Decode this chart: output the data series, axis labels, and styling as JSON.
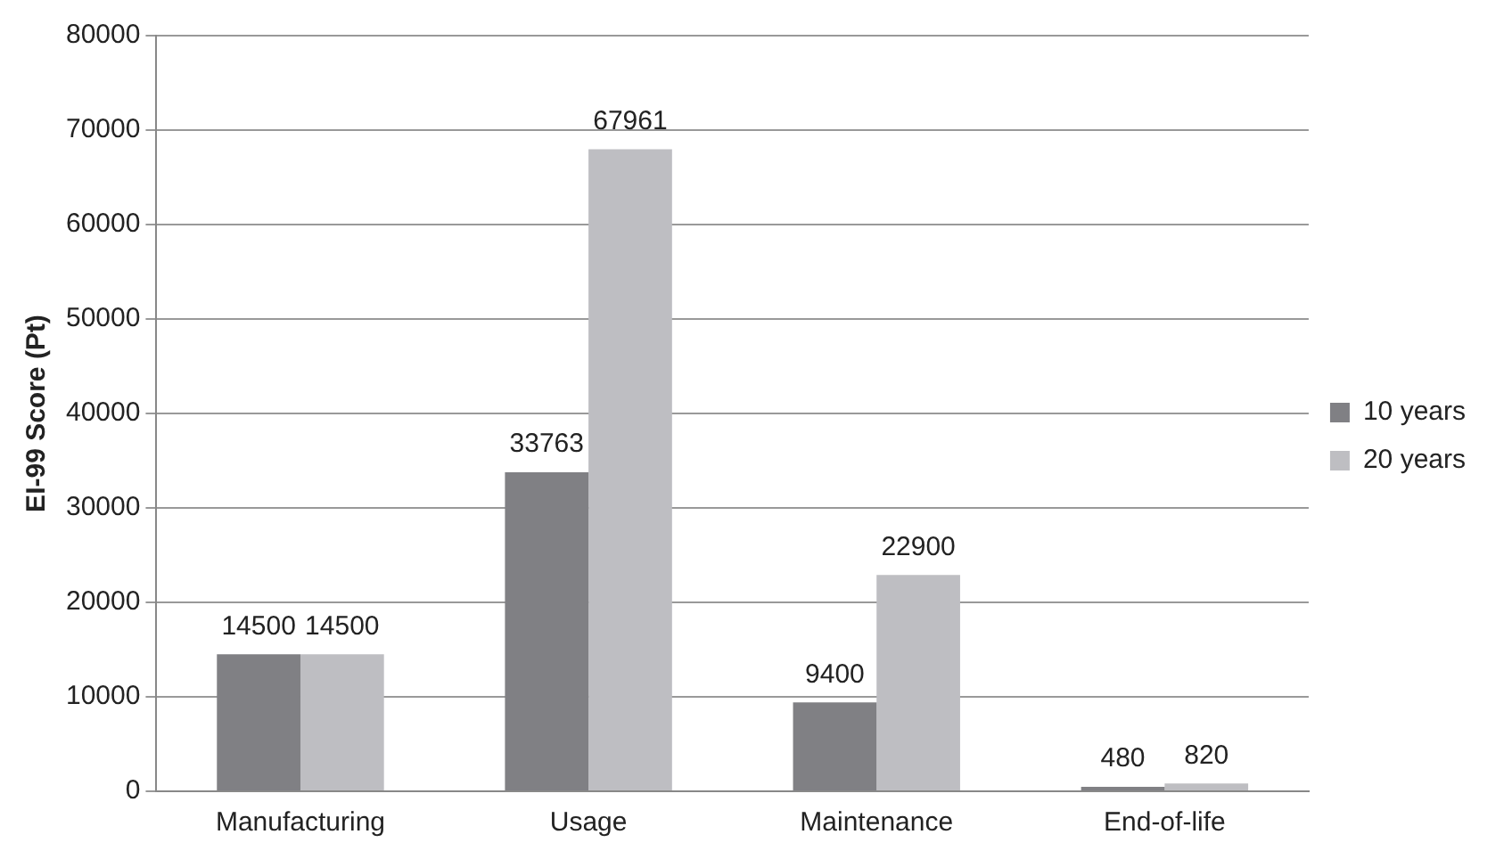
{
  "chart_data": {
    "type": "bar",
    "ylabel": "EI-99 Score (Pt)",
    "categories": [
      "Manufacturing",
      "Usage",
      "Maintenance",
      "End-of-life"
    ],
    "series": [
      {
        "name": "10 years",
        "color": "#808084",
        "values": [
          14500,
          33763,
          9400,
          480
        ]
      },
      {
        "name": "20 years",
        "color": "#bebec2",
        "values": [
          14500,
          67961,
          22900,
          820
        ]
      }
    ],
    "ylim": [
      0,
      80000
    ],
    "yticks": [
      0,
      10000,
      20000,
      30000,
      40000,
      50000,
      60000,
      70000,
      80000
    ],
    "grid": "y",
    "legend": "right",
    "data_labels": true
  }
}
